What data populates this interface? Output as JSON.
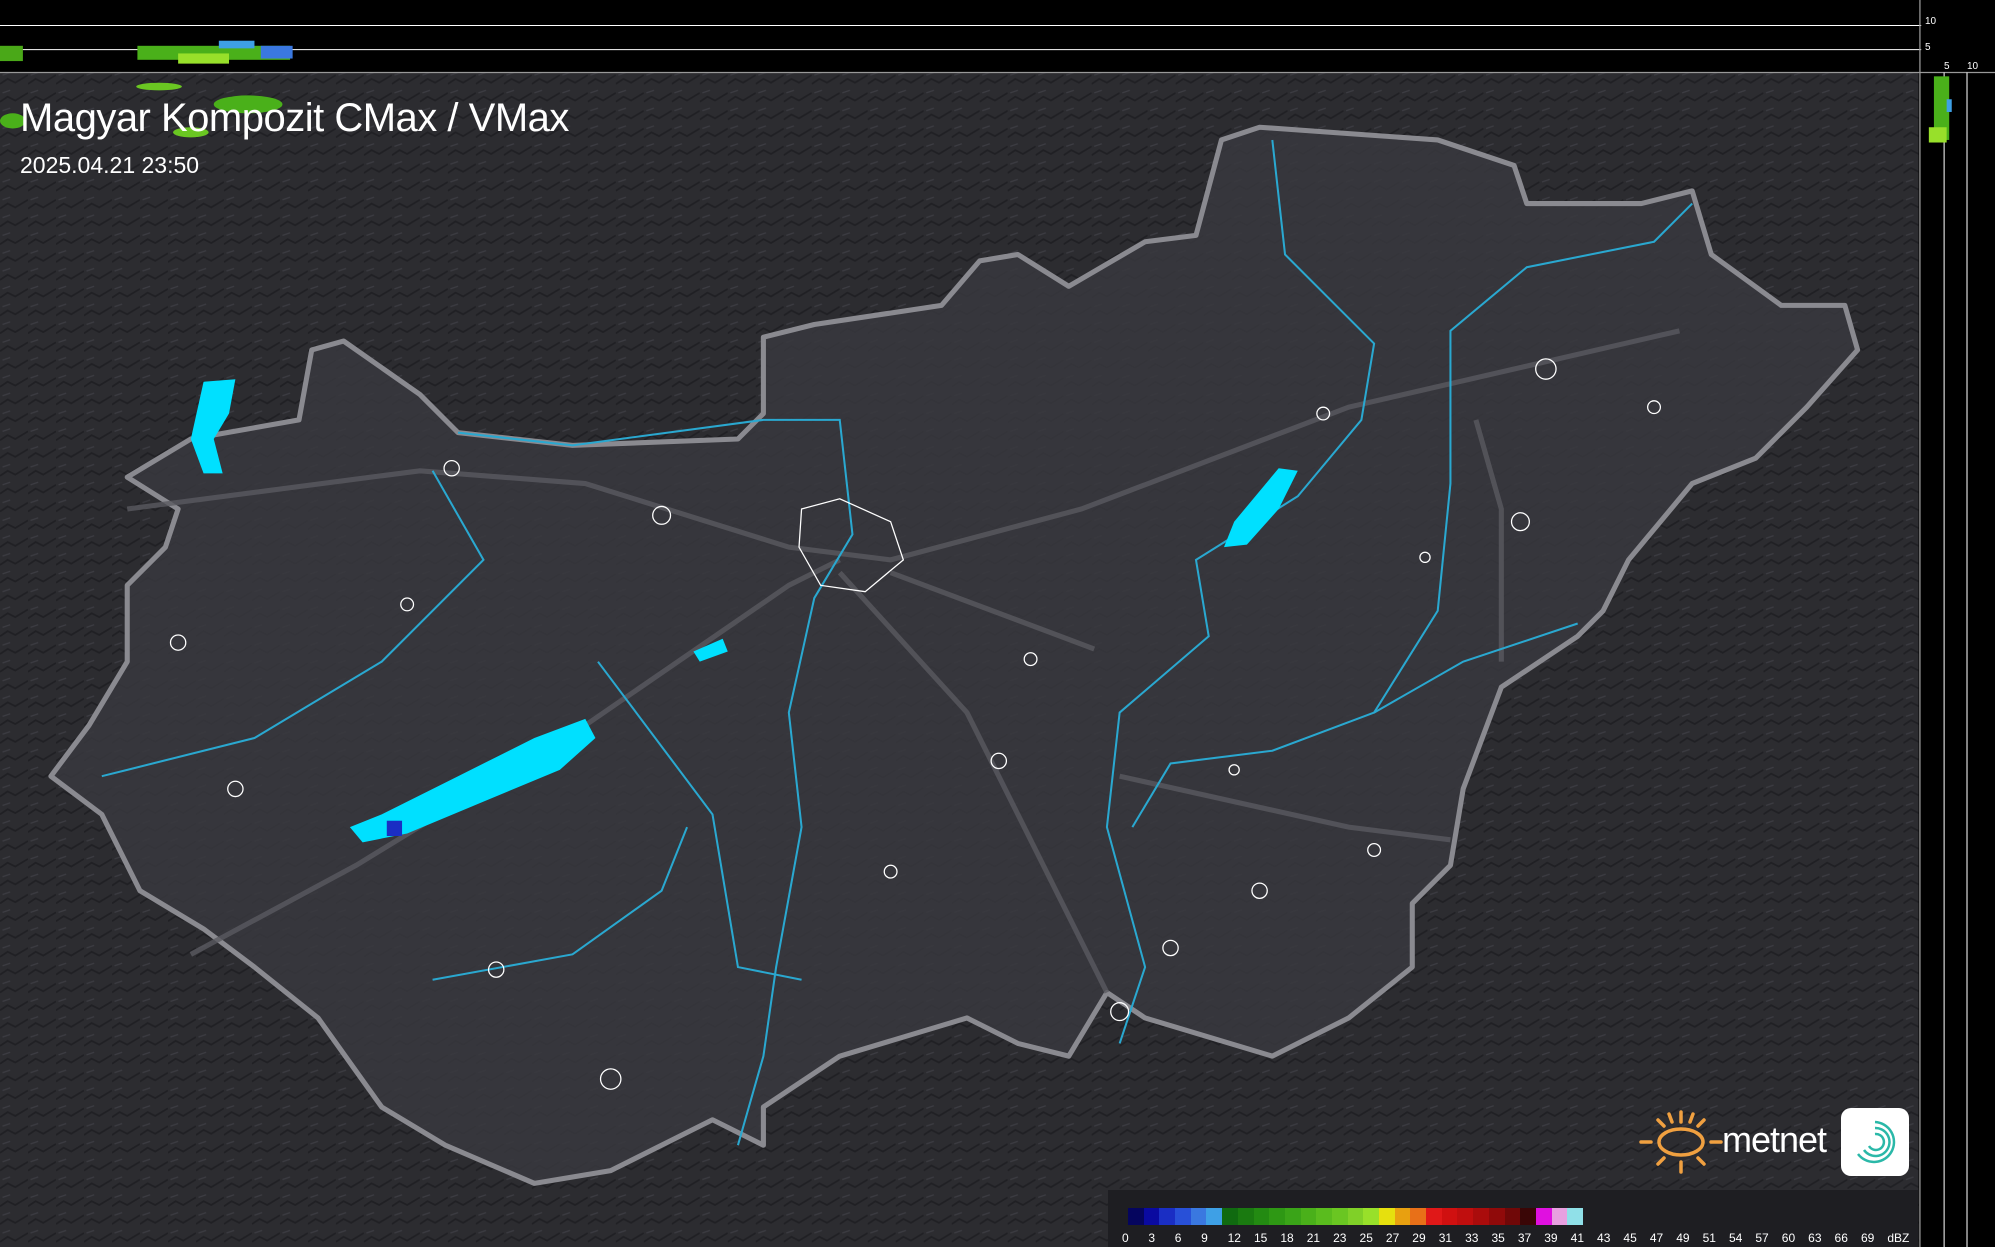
{
  "header": {
    "title": "Magyar Kompozit CMax / VMax",
    "timestamp": "2025.04.21 23:50"
  },
  "profile_axes": {
    "top_ticks": [
      "10",
      "5"
    ],
    "side_ticks": [
      "5",
      "10"
    ]
  },
  "legend": {
    "unit": "dBZ",
    "ticks": [
      "0",
      "3",
      "6",
      "9",
      "12",
      "15",
      "18",
      "21",
      "23",
      "25",
      "27",
      "29",
      "31",
      "33",
      "35",
      "37",
      "39",
      "41",
      "43",
      "45",
      "47",
      "49",
      "51",
      "54",
      "57",
      "60",
      "63",
      "66",
      "69"
    ],
    "colors": [
      "#05055e",
      "#0a0aa0",
      "#1a2ec4",
      "#2850d8",
      "#3a78e0",
      "#3ea0e6",
      "#106a10",
      "#1a7a10",
      "#238a12",
      "#2e9814",
      "#3aa418",
      "#4ab01a",
      "#5abc1e",
      "#6ac622",
      "#80d028",
      "#98e02a",
      "#e6e00e",
      "#e8a010",
      "#e87018",
      "#e01818",
      "#d01010",
      "#c00e0e",
      "#aa0c0c",
      "#900a0a",
      "#700808",
      "#3a0606",
      "#e010e0",
      "#e8a0e0",
      "#90e0e8"
    ]
  },
  "logo": {
    "brand": "metnet",
    "colors": {
      "sun": "#f0a040",
      "swirl": "#2ab8a8"
    }
  },
  "map": {
    "colors": {
      "water": "#00e0ff",
      "rivers": "#2aa8d0",
      "border": "#8a8a90",
      "land": "#3a3a40"
    }
  }
}
